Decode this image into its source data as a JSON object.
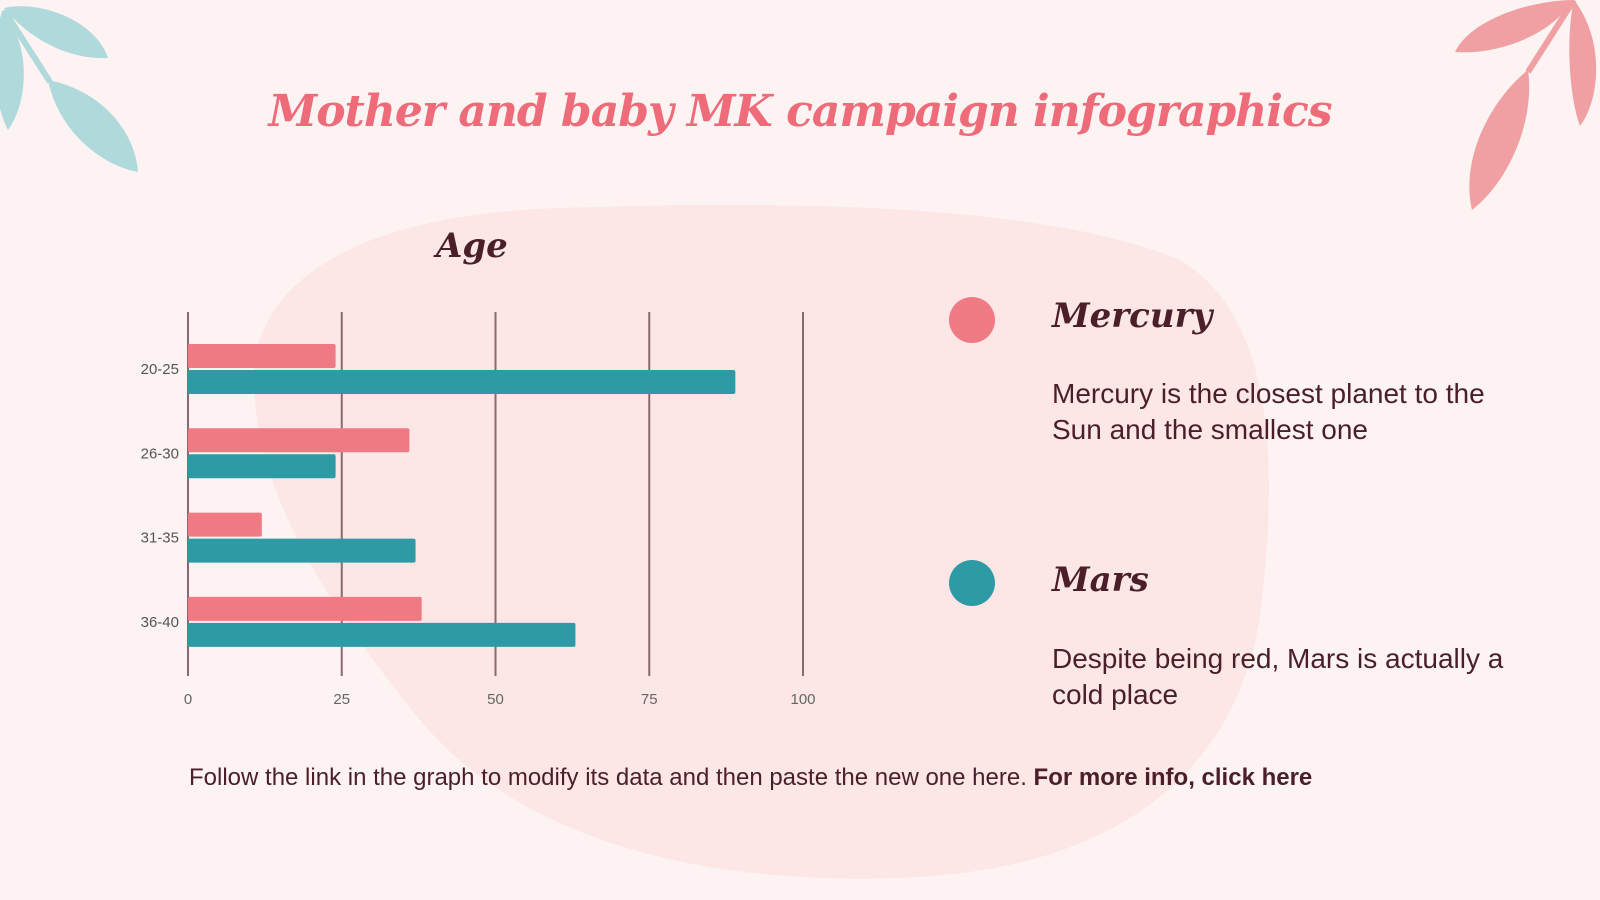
{
  "title": "Mother and baby MK campaign infographics",
  "chart_data": {
    "type": "bar",
    "orientation": "horizontal",
    "title": "Age",
    "categories": [
      "20-25",
      "26-30",
      "31-35",
      "36-40"
    ],
    "series": [
      {
        "name": "Mercury",
        "color": "#f07a84",
        "values": [
          24,
          36,
          12,
          38
        ]
      },
      {
        "name": "Mars",
        "color": "#2e9aa5",
        "values": [
          89,
          24,
          37,
          63
        ]
      }
    ],
    "xlim": [
      0,
      100
    ],
    "xticks": [
      "0",
      "25",
      "50",
      "75",
      "100"
    ],
    "grid": true
  },
  "legend": [
    {
      "name": "Mercury",
      "color": "#f07a84",
      "description": "Mercury is the closest planet to the Sun and the smallest one"
    },
    {
      "name": "Mars",
      "color": "#2e9aa5",
      "description": "Despite being red, Mars is actually a cold place"
    }
  ],
  "footer": {
    "text": "Follow the link in the graph to modify its data and then paste the new one here. ",
    "link": "For more info, click here"
  }
}
